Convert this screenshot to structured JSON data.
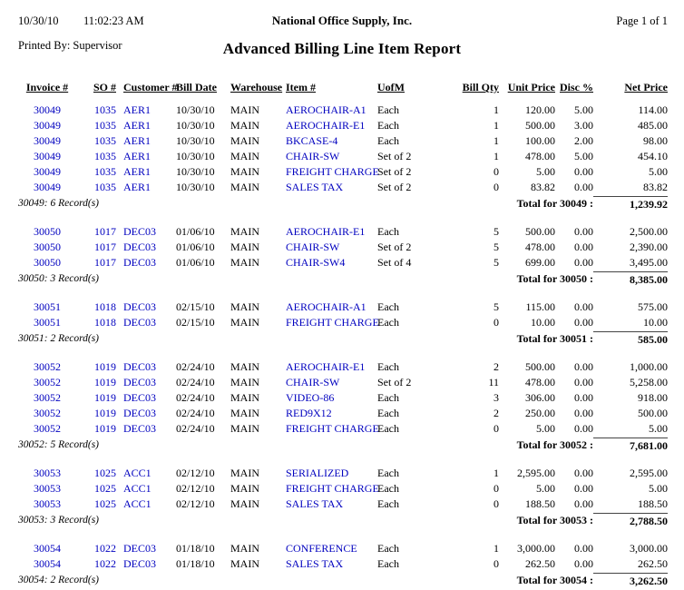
{
  "header": {
    "date": "10/30/10",
    "time": "11:02:23 AM",
    "company": "National Office Supply, Inc.",
    "page": "Page 1 of 1",
    "printed_by": "Printed By: Supervisor",
    "title": "Advanced Billing Line Item Report"
  },
  "columns": [
    "Invoice #",
    "SO #",
    "Customer #",
    "Bill Date",
    "Warehouse",
    "Item #",
    "UofM",
    "Bill Qty",
    "Unit Price",
    "Disc %",
    "Net Price"
  ],
  "column_keys": [
    "invoice-number",
    "so-number",
    "customer-number",
    "bill-date",
    "warehouse",
    "item-number",
    "uofm",
    "bill-qty",
    "unit-price",
    "disc-percent",
    "net-price"
  ],
  "colors": {
    "data_blue": "#0000BF",
    "text_black": "#000000"
  },
  "groups": [
    {
      "rows": [
        [
          "30049",
          "1035",
          "AER1",
          "10/30/10",
          "MAIN",
          "AEROCHAIR-A1",
          "Each",
          "1",
          "120.00",
          "5.00",
          "114.00"
        ],
        [
          "30049",
          "1035",
          "AER1",
          "10/30/10",
          "MAIN",
          "AEROCHAIR-E1",
          "Each",
          "1",
          "500.00",
          "3.00",
          "485.00"
        ],
        [
          "30049",
          "1035",
          "AER1",
          "10/30/10",
          "MAIN",
          "BKCASE-4",
          "Each",
          "1",
          "100.00",
          "2.00",
          "98.00"
        ],
        [
          "30049",
          "1035",
          "AER1",
          "10/30/10",
          "MAIN",
          "CHAIR-SW",
          "Set of 2",
          "1",
          "478.00",
          "5.00",
          "454.10"
        ],
        [
          "30049",
          "1035",
          "AER1",
          "10/30/10",
          "MAIN",
          "FREIGHT CHARGE",
          "Set of 2",
          "0",
          "5.00",
          "0.00",
          "5.00"
        ],
        [
          "30049",
          "1035",
          "AER1",
          "10/30/10",
          "MAIN",
          "SALES TAX",
          "Set of 2",
          "0",
          "83.82",
          "0.00",
          "83.82"
        ]
      ],
      "record_count_label": "30049: 6 Record(s)",
      "total_label": "Total for 30049 :",
      "total_value": "1,239.92"
    },
    {
      "rows": [
        [
          "30050",
          "1017",
          "DEC03",
          "01/06/10",
          "MAIN",
          "AEROCHAIR-E1",
          "Each",
          "5",
          "500.00",
          "0.00",
          "2,500.00"
        ],
        [
          "30050",
          "1017",
          "DEC03",
          "01/06/10",
          "MAIN",
          "CHAIR-SW",
          "Set of 2",
          "5",
          "478.00",
          "0.00",
          "2,390.00"
        ],
        [
          "30050",
          "1017",
          "DEC03",
          "01/06/10",
          "MAIN",
          "CHAIR-SW4",
          "Set of 4",
          "5",
          "699.00",
          "0.00",
          "3,495.00"
        ]
      ],
      "record_count_label": "30050: 3 Record(s)",
      "total_label": "Total for 30050 :",
      "total_value": "8,385.00"
    },
    {
      "rows": [
        [
          "30051",
          "1018",
          "DEC03",
          "02/15/10",
          "MAIN",
          "AEROCHAIR-A1",
          "Each",
          "5",
          "115.00",
          "0.00",
          "575.00"
        ],
        [
          "30051",
          "1018",
          "DEC03",
          "02/15/10",
          "MAIN",
          "FREIGHT CHARGE",
          "Each",
          "0",
          "10.00",
          "0.00",
          "10.00"
        ]
      ],
      "record_count_label": "30051: 2 Record(s)",
      "total_label": "Total for 30051 :",
      "total_value": "585.00"
    },
    {
      "rows": [
        [
          "30052",
          "1019",
          "DEC03",
          "02/24/10",
          "MAIN",
          "AEROCHAIR-E1",
          "Each",
          "2",
          "500.00",
          "0.00",
          "1,000.00"
        ],
        [
          "30052",
          "1019",
          "DEC03",
          "02/24/10",
          "MAIN",
          "CHAIR-SW",
          "Set of 2",
          "11",
          "478.00",
          "0.00",
          "5,258.00"
        ],
        [
          "30052",
          "1019",
          "DEC03",
          "02/24/10",
          "MAIN",
          "VIDEO-86",
          "Each",
          "3",
          "306.00",
          "0.00",
          "918.00"
        ],
        [
          "30052",
          "1019",
          "DEC03",
          "02/24/10",
          "MAIN",
          "RED9X12",
          "Each",
          "2",
          "250.00",
          "0.00",
          "500.00"
        ],
        [
          "30052",
          "1019",
          "DEC03",
          "02/24/10",
          "MAIN",
          "FREIGHT CHARGE",
          "Each",
          "0",
          "5.00",
          "0.00",
          "5.00"
        ]
      ],
      "record_count_label": "30052: 5 Record(s)",
      "total_label": "Total for 30052 :",
      "total_value": "7,681.00"
    },
    {
      "rows": [
        [
          "30053",
          "1025",
          "ACC1",
          "02/12/10",
          "MAIN",
          "SERIALIZED",
          "Each",
          "1",
          "2,595.00",
          "0.00",
          "2,595.00"
        ],
        [
          "30053",
          "1025",
          "ACC1",
          "02/12/10",
          "MAIN",
          "FREIGHT CHARGE",
          "Each",
          "0",
          "5.00",
          "0.00",
          "5.00"
        ],
        [
          "30053",
          "1025",
          "ACC1",
          "02/12/10",
          "MAIN",
          "SALES TAX",
          "Each",
          "0",
          "188.50",
          "0.00",
          "188.50"
        ]
      ],
      "record_count_label": "30053: 3 Record(s)",
      "total_label": "Total for 30053 :",
      "total_value": "2,788.50"
    },
    {
      "rows": [
        [
          "30054",
          "1022",
          "DEC03",
          "01/18/10",
          "MAIN",
          "CONFERENCE",
          "Each",
          "1",
          "3,000.00",
          "0.00",
          "3,000.00"
        ],
        [
          "30054",
          "1022",
          "DEC03",
          "01/18/10",
          "MAIN",
          "SALES TAX",
          "Each",
          "0",
          "262.50",
          "0.00",
          "262.50"
        ]
      ],
      "record_count_label": "30054: 2 Record(s)",
      "total_label": "Total for 30054 :",
      "total_value": "3,262.50"
    }
  ]
}
